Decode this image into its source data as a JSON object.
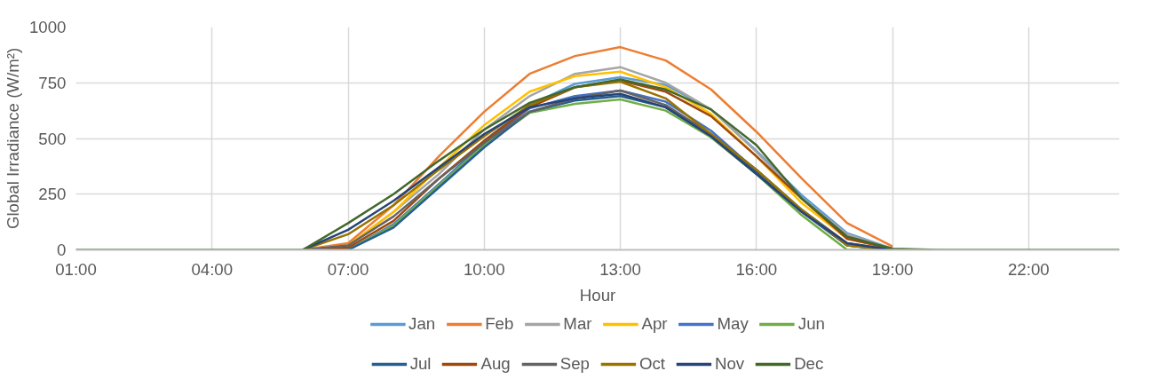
{
  "chart_data": {
    "type": "line",
    "xlabel": "Hour",
    "ylabel": "Global Irradiance (W/m²)",
    "x": [
      1,
      2,
      3,
      4,
      5,
      6,
      7,
      8,
      9,
      10,
      11,
      12,
      13,
      14,
      15,
      16,
      17,
      18,
      19,
      20,
      21,
      22,
      23,
      24
    ],
    "xlim": [
      1,
      24
    ],
    "xticks": [
      {
        "value": 1,
        "label": "01:00"
      },
      {
        "value": 4,
        "label": "04:00"
      },
      {
        "value": 7,
        "label": "07:00"
      },
      {
        "value": 10,
        "label": "10:00"
      },
      {
        "value": 13,
        "label": "13:00"
      },
      {
        "value": 16,
        "label": "16:00"
      },
      {
        "value": 19,
        "label": "19:00"
      },
      {
        "value": 22,
        "label": "22:00"
      }
    ],
    "ylim": [
      0,
      1000
    ],
    "yticks": [
      0,
      250,
      500,
      750,
      1000
    ],
    "grid": true,
    "legend": "bottom",
    "marker": "none",
    "line_style": "solid",
    "series": [
      {
        "name": "Jan",
        "color": "#5b9bd5",
        "values": [
          null,
          null,
          null,
          null,
          null,
          null,
          null,
          null,
          null,
          490,
          650,
          745,
          775,
          740,
          630,
          445,
          245,
          75,
          5,
          null,
          null,
          null,
          null,
          null
        ]
      },
      {
        "name": "Feb",
        "color": "#ed7d31",
        "values": [
          null,
          null,
          null,
          null,
          null,
          0,
          30,
          200,
          420,
          620,
          790,
          870,
          910,
          850,
          720,
          530,
          320,
          120,
          15,
          null,
          null,
          null,
          null,
          null
        ]
      },
      {
        "name": "Mar",
        "color": "#a5a5a5",
        "values": [
          null,
          null,
          null,
          null,
          null,
          0,
          20,
          170,
          340,
          540,
          690,
          790,
          820,
          750,
          630,
          440,
          230,
          70,
          5,
          null,
          null,
          null,
          null,
          null
        ]
      },
      {
        "name": "Apr",
        "color": "#ffc000",
        "values": [
          null,
          null,
          null,
          null,
          null,
          0,
          20,
          170,
          370,
          560,
          710,
          780,
          800,
          730,
          610,
          420,
          210,
          50,
          5,
          null,
          null,
          null,
          null,
          null
        ]
      },
      {
        "name": "May",
        "color": "#4472c4",
        "values": [
          null,
          null,
          null,
          null,
          null,
          0,
          0,
          115,
          295,
          480,
          635,
          690,
          715,
          665,
          535,
          355,
          175,
          20,
          0,
          null,
          null,
          null,
          null,
          null
        ]
      },
      {
        "name": "Jun",
        "color": "#70ad47",
        "values": [
          null,
          null,
          null,
          null,
          null,
          0,
          0,
          110,
          290,
          470,
          615,
          655,
          675,
          625,
          505,
          340,
          155,
          0,
          0,
          null,
          null,
          null,
          null,
          null
        ]
      },
      {
        "name": "Jul",
        "color": "#255e91",
        "values": [
          null,
          null,
          null,
          null,
          null,
          0,
          0,
          100,
          280,
          460,
          620,
          670,
          690,
          640,
          510,
          350,
          170,
          20,
          0,
          null,
          null,
          null,
          null,
          null
        ]
      },
      {
        "name": "Aug",
        "color": "#9e480e",
        "values": [
          null,
          null,
          null,
          null,
          null,
          0,
          10,
          130,
          320,
          490,
          640,
          730,
          760,
          710,
          600,
          420,
          230,
          50,
          5,
          null,
          null,
          null,
          null,
          null
        ]
      },
      {
        "name": "Sep",
        "color": "#636363",
        "values": [
          null,
          null,
          null,
          null,
          null,
          0,
          20,
          150,
          320,
          480,
          620,
          680,
          715,
          650,
          520,
          360,
          180,
          30,
          0,
          null,
          null,
          null,
          null,
          null
        ]
      },
      {
        "name": "Oct",
        "color": "#997300",
        "values": [
          null,
          null,
          null,
          null,
          null,
          0,
          70,
          200,
          360,
          510,
          650,
          730,
          755,
          680,
          520,
          360,
          180,
          20,
          0,
          null,
          null,
          null,
          null,
          null
        ]
      },
      {
        "name": "Nov",
        "color": "#264478",
        "values": [
          null,
          null,
          null,
          null,
          null,
          0,
          90,
          220,
          370,
          520,
          640,
          680,
          700,
          640,
          510,
          340,
          170,
          30,
          0,
          null,
          null,
          null,
          null,
          null
        ]
      },
      {
        "name": "Dec",
        "color": "#43682b",
        "values": [
          0,
          0,
          0,
          0,
          0,
          0,
          120,
          250,
          400,
          540,
          660,
          730,
          765,
          720,
          630,
          470,
          230,
          60,
          5,
          0,
          0,
          0,
          0,
          0
        ]
      }
    ]
  }
}
